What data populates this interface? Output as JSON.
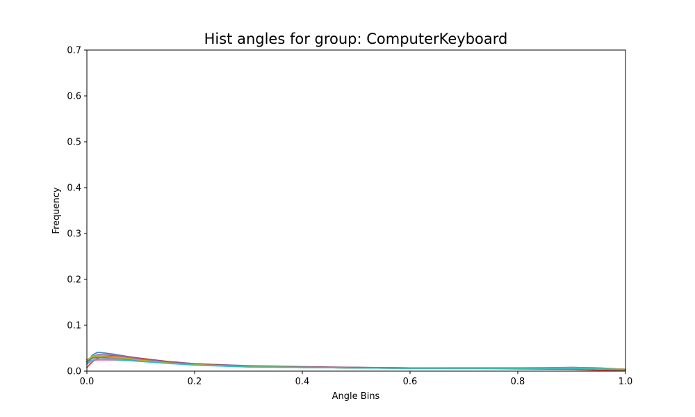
{
  "chart_data": {
    "type": "line",
    "title": "Hist angles for group: ComputerKeyboard",
    "xlabel": "Angle Bins",
    "ylabel": "Frequency",
    "xlim": [
      0,
      1
    ],
    "ylim": [
      0,
      0.7
    ],
    "xticks": [
      "0.0",
      "0.2",
      "0.4",
      "0.6",
      "0.8",
      "1.0"
    ],
    "yticks": [
      "0.0",
      "0.1",
      "0.2",
      "0.3",
      "0.4",
      "0.5",
      "0.6",
      "0.7"
    ],
    "grid": false,
    "legend": "none",
    "x": [
      0.0,
      0.01,
      0.02,
      0.03,
      0.05,
      0.08,
      0.1,
      0.15,
      0.2,
      0.3,
      0.4,
      0.5,
      0.6,
      0.7,
      0.8,
      0.9,
      0.95,
      1.0
    ],
    "series": [
      {
        "color": "#1f77b4",
        "values": [
          0.018,
          0.035,
          0.041,
          0.04,
          0.037,
          0.031,
          0.027,
          0.021,
          0.016,
          0.011,
          0.009,
          0.008,
          0.007,
          0.007,
          0.007,
          0.007,
          0.006,
          0.003
        ]
      },
      {
        "color": "#ff7f0e",
        "values": [
          0.022,
          0.033,
          0.035,
          0.034,
          0.032,
          0.028,
          0.025,
          0.019,
          0.015,
          0.01,
          0.008,
          0.007,
          0.006,
          0.006,
          0.006,
          0.006,
          0.006,
          0.004
        ]
      },
      {
        "color": "#2ca02c",
        "values": [
          0.025,
          0.03,
          0.031,
          0.03,
          0.029,
          0.026,
          0.023,
          0.018,
          0.014,
          0.01,
          0.008,
          0.007,
          0.007,
          0.006,
          0.006,
          0.008,
          0.007,
          0.004
        ]
      },
      {
        "color": "#d62728",
        "values": [
          0.008,
          0.02,
          0.028,
          0.032,
          0.034,
          0.031,
          0.028,
          0.021,
          0.016,
          0.011,
          0.008,
          0.007,
          0.006,
          0.006,
          0.005,
          0.004,
          0.002,
          0.001
        ]
      },
      {
        "color": "#9467bd",
        "values": [
          0.015,
          0.03,
          0.036,
          0.037,
          0.035,
          0.03,
          0.026,
          0.02,
          0.016,
          0.012,
          0.01,
          0.008,
          0.007,
          0.007,
          0.007,
          0.008,
          0.007,
          0.004
        ]
      },
      {
        "color": "#8c564b",
        "values": [
          0.02,
          0.028,
          0.03,
          0.03,
          0.029,
          0.027,
          0.024,
          0.019,
          0.015,
          0.011,
          0.009,
          0.008,
          0.007,
          0.007,
          0.007,
          0.007,
          0.006,
          0.004
        ]
      },
      {
        "color": "#e377c2",
        "values": [
          0.015,
          0.022,
          0.024,
          0.024,
          0.024,
          0.023,
          0.022,
          0.018,
          0.014,
          0.01,
          0.008,
          0.007,
          0.006,
          0.006,
          0.006,
          0.006,
          0.005,
          0.003
        ]
      },
      {
        "color": "#7f7f7f",
        "values": [
          0.02,
          0.028,
          0.03,
          0.029,
          0.028,
          0.025,
          0.023,
          0.018,
          0.014,
          0.01,
          0.008,
          0.007,
          0.007,
          0.006,
          0.006,
          0.007,
          0.006,
          0.004
        ]
      },
      {
        "color": "#bcbd22",
        "values": [
          0.024,
          0.032,
          0.033,
          0.032,
          0.03,
          0.027,
          0.024,
          0.018,
          0.014,
          0.01,
          0.008,
          0.007,
          0.006,
          0.006,
          0.006,
          0.007,
          0.006,
          0.004
        ]
      },
      {
        "color": "#17becf",
        "values": [
          0.018,
          0.024,
          0.026,
          0.026,
          0.025,
          0.023,
          0.021,
          0.017,
          0.013,
          0.009,
          0.008,
          0.007,
          0.006,
          0.006,
          0.006,
          0.006,
          0.005,
          0.003
        ]
      }
    ]
  }
}
